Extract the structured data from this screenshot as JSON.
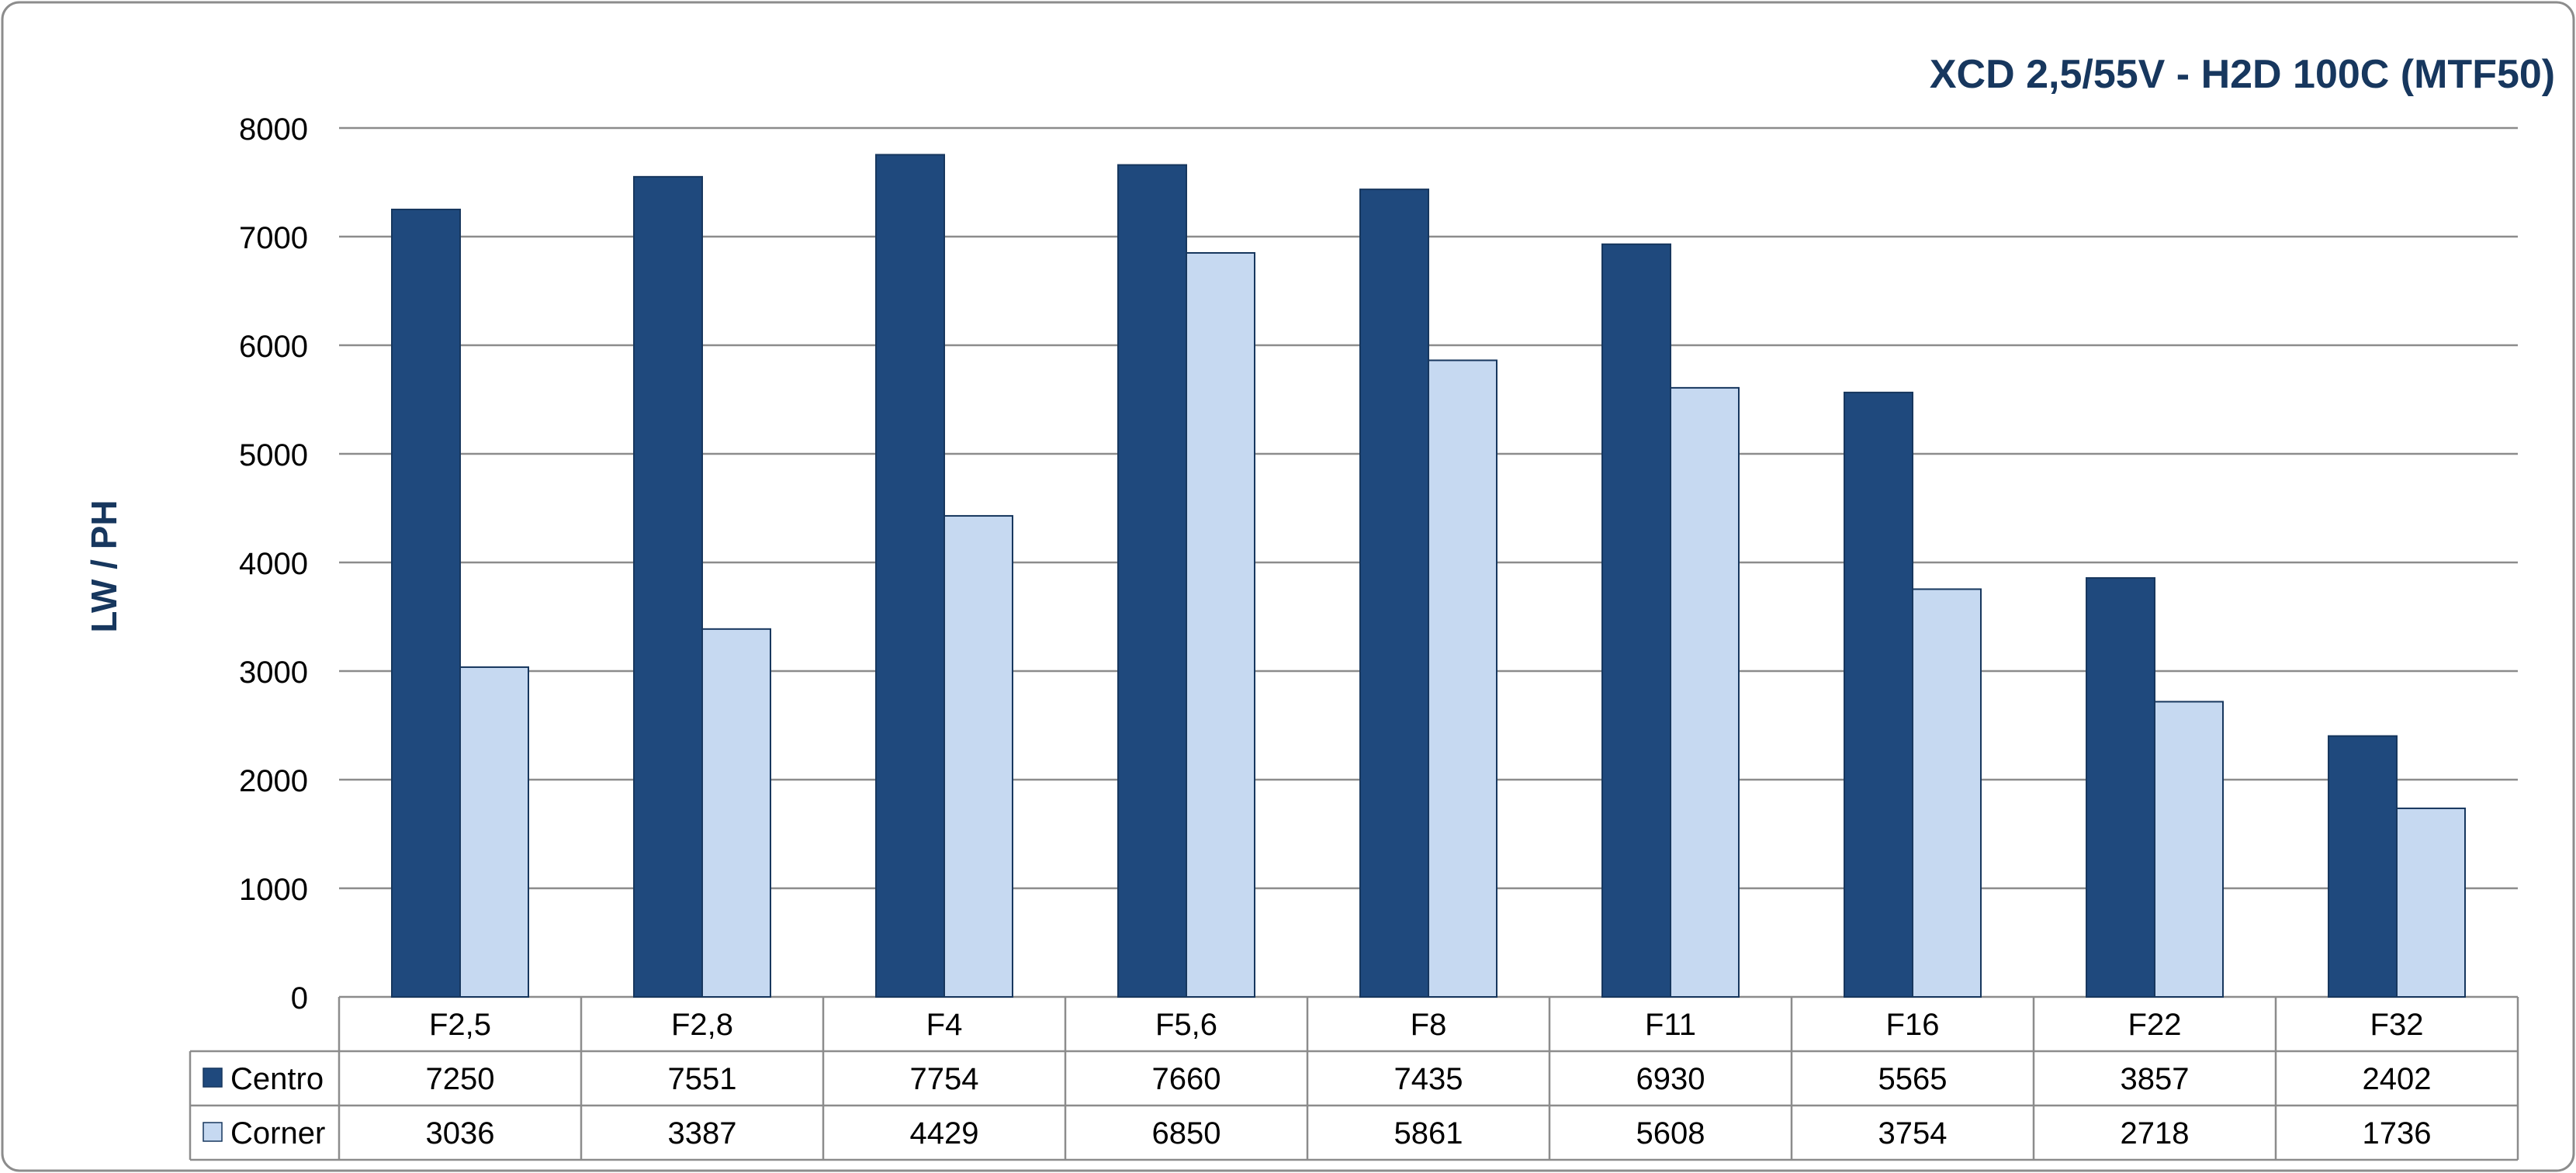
{
  "chart_data": {
    "type": "bar",
    "title": "XCD 2,5/55V - H2D 100C (MTF50)",
    "ylabel": "LW / PH",
    "xlabel": "",
    "ylim": [
      0,
      8000
    ],
    "yticks": [
      0,
      1000,
      2000,
      3000,
      4000,
      5000,
      6000,
      7000,
      8000
    ],
    "grid": true,
    "legend": "data-table-left",
    "categories": [
      "F2,5",
      "F2,8",
      "F4",
      "F5,6",
      "F8",
      "F11",
      "F16",
      "F22",
      "F32"
    ],
    "series": [
      {
        "name": "Centro",
        "color": "#1f497d",
        "values": [
          7250,
          7551,
          7754,
          7660,
          7435,
          6930,
          5565,
          3857,
          2402
        ]
      },
      {
        "name": "Corner",
        "color": "#c6d9f1",
        "values": [
          3036,
          3387,
          4429,
          6850,
          5861,
          5608,
          3754,
          2718,
          1736
        ]
      }
    ]
  }
}
